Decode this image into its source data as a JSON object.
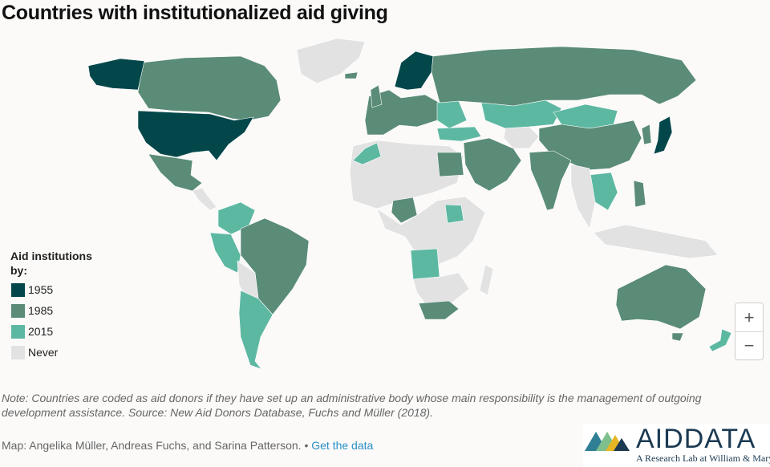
{
  "title": "Countries with institutionalized aid giving",
  "colors": {
    "y1955": "#03474a",
    "y1985": "#5a8c78",
    "y2015": "#5db8a2",
    "never": "#e2e2e2",
    "background": "#fbfaf9",
    "link": "#2a8fc6"
  },
  "legend": {
    "title": "Aid institutions by:",
    "items": [
      {
        "label": "1955",
        "color": "#03474a"
      },
      {
        "label": "1985",
        "color": "#5a8c78"
      },
      {
        "label": "2015",
        "color": "#5db8a2"
      },
      {
        "label": "Never",
        "color": "#e2e2e2"
      }
    ]
  },
  "zoom": {
    "in_label": "+",
    "out_label": "−"
  },
  "note": "Note: Countries are coded as aid donors if they have set up an administrative body whose main responsibility is the management of outgoing development assistance. Source: New Aid Donors Database, Fuchs and Müller (2018).",
  "credit": {
    "text": "Map: Angelika Müller, Andreas Fuchs, and Sarina Patterson.",
    "separator": "•",
    "link": "Get the data"
  },
  "logo": {
    "word_aid": "AID",
    "word_data": "DATA",
    "tagline": "A Research Lab at William & Mary",
    "colors": [
      "#2f7f95",
      "#7fbf8c",
      "#e6b625",
      "#1b3a52"
    ]
  }
}
